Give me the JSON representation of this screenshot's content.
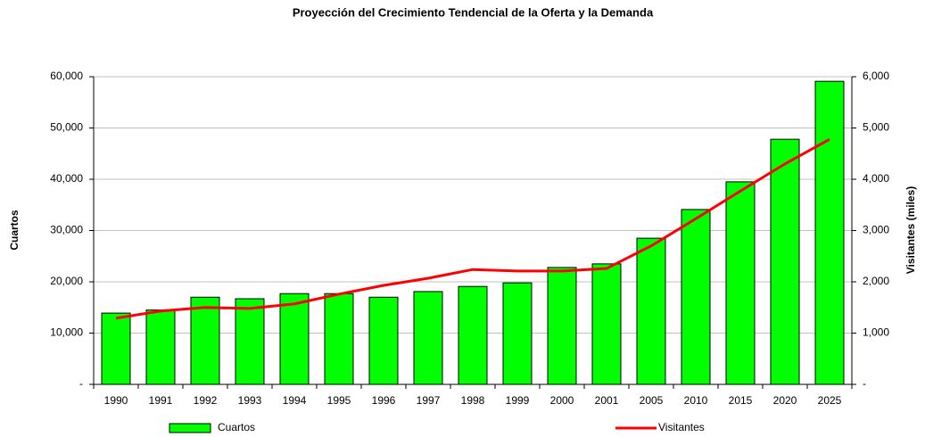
{
  "chart_data": {
    "type": "bar_line",
    "title": "Proyección del Crecimiento Tendencial de la Oferta y la Demanda",
    "ylabel": "Cuartos",
    "y2label": "Visitantes (miles)",
    "categories": [
      "1990",
      "1991",
      "1992",
      "1993",
      "1994",
      "1995",
      "1996",
      "1997",
      "1998",
      "1999",
      "2000",
      "2001",
      "2005",
      "2010",
      "2015",
      "2020",
      "2025"
    ],
    "series": [
      {
        "name": "Cuartos",
        "type": "bar",
        "color": "#00ff00",
        "values": [
          13900,
          14500,
          17000,
          16700,
          17700,
          17700,
          17000,
          18100,
          19100,
          19800,
          22800,
          23500,
          28500,
          34100,
          39500,
          47800,
          59100
        ]
      },
      {
        "name": "Visitantes",
        "type": "line",
        "axis": "y2",
        "color": "#ff0000",
        "values": [
          1290,
          1430,
          1500,
          1480,
          1570,
          1760,
          1930,
          2070,
          2240,
          2210,
          2210,
          2260,
          2700,
          3230,
          3770,
          4300,
          4780
        ]
      }
    ],
    "ylim": [
      0,
      60000
    ],
    "yticks": [
      {
        "value": 0,
        "label": "-"
      },
      {
        "value": 10000,
        "label": "10,000"
      },
      {
        "value": 20000,
        "label": "20,000"
      },
      {
        "value": 30000,
        "label": "30,000"
      },
      {
        "value": 40000,
        "label": "40,000"
      },
      {
        "value": 50000,
        "label": "50,000"
      },
      {
        "value": 60000,
        "label": "60,000"
      }
    ],
    "y2lim": [
      0,
      6000
    ],
    "y2ticks": [
      {
        "value": 0,
        "label": "-"
      },
      {
        "value": 1000,
        "label": "1,000"
      },
      {
        "value": 2000,
        "label": "2,000"
      },
      {
        "value": 3000,
        "label": "3,000"
      },
      {
        "value": 4000,
        "label": "4,000"
      },
      {
        "value": 5000,
        "label": "5,000"
      },
      {
        "value": 6000,
        "label": "6,000"
      }
    ],
    "grid": true
  }
}
